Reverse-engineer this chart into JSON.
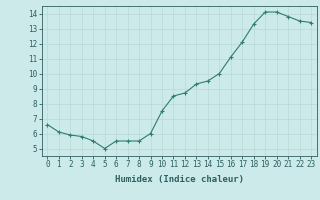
{
  "x": [
    0,
    1,
    2,
    3,
    4,
    5,
    6,
    7,
    8,
    9,
    10,
    11,
    12,
    13,
    14,
    15,
    16,
    17,
    18,
    19,
    20,
    21,
    22,
    23
  ],
  "y": [
    6.6,
    6.1,
    5.9,
    5.8,
    5.5,
    5.0,
    5.5,
    5.5,
    5.5,
    6.0,
    7.5,
    8.5,
    8.7,
    9.3,
    9.5,
    10.0,
    11.1,
    12.1,
    13.3,
    14.1,
    14.1,
    13.8,
    13.5,
    13.4
  ],
  "line_color": "#2e7d6e",
  "marker": "+",
  "marker_size": 3,
  "bg_color": "#cdeaea",
  "grid_color": "#b8d8d8",
  "xlabel": "Humidex (Indice chaleur)",
  "xlim": [
    -0.5,
    23.5
  ],
  "ylim": [
    4.5,
    14.5
  ],
  "yticks": [
    5,
    6,
    7,
    8,
    9,
    10,
    11,
    12,
    13,
    14
  ],
  "xticks": [
    0,
    1,
    2,
    3,
    4,
    5,
    6,
    7,
    8,
    9,
    10,
    11,
    12,
    13,
    14,
    15,
    16,
    17,
    18,
    19,
    20,
    21,
    22,
    23
  ],
  "tick_color": "#2e6060",
  "spine_color": "#2e6060",
  "xlabel_fontsize": 6.5,
  "tick_fontsize": 5.5,
  "line_width": 0.8,
  "marker_edge_width": 0.8
}
